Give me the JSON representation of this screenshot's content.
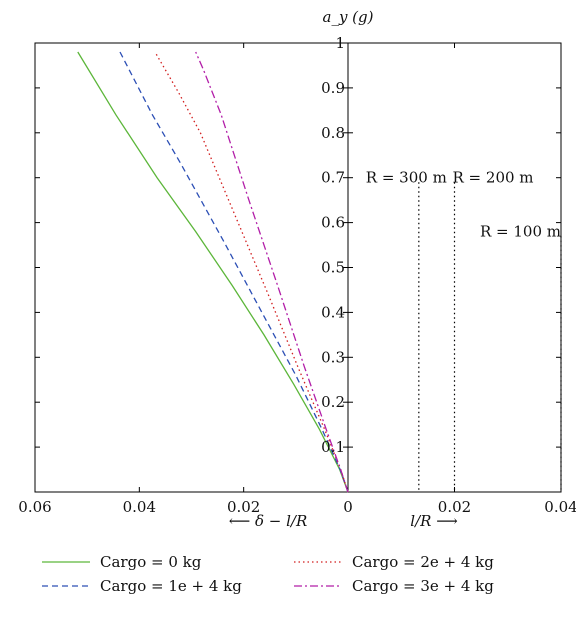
{
  "chart_data": {
    "type": "line",
    "ylabel": "a_y (g)",
    "xlabel_left": "⟵ δ − l/R",
    "xlabel_right": "l/R ⟶",
    "left_panel": {
      "xlim": [
        0.06,
        0
      ],
      "xticks": [
        0.06,
        0.04,
        0.02,
        0
      ],
      "xtick_labels": [
        "0.06",
        "0.04",
        "0.02",
        "0"
      ]
    },
    "right_panel": {
      "xlim": [
        0,
        0.04
      ],
      "xticks": [
        0.02,
        0.04
      ],
      "xtick_labels": [
        "0.02",
        "0.04"
      ]
    },
    "ylim": [
      0,
      1
    ],
    "yticks": [
      0.1,
      0.2,
      0.3,
      0.4,
      0.5,
      0.6,
      0.7,
      0.8,
      0.9,
      1
    ],
    "ytick_labels": [
      "0.1",
      "0.2",
      "0.3",
      "0.4",
      "0.5",
      "0.6",
      "0.7",
      "0.8",
      "0.9",
      "1"
    ],
    "series": [
      {
        "name": "Cargo = 0 kg",
        "color": "#5cb63a",
        "dash": "solid",
        "x": [
          0,
          0.0016,
          0.0055,
          0.0104,
          0.0161,
          0.0222,
          0.0292,
          0.0366,
          0.0445,
          0.0518
        ],
        "y": [
          0,
          0.05,
          0.14,
          0.24,
          0.35,
          0.46,
          0.58,
          0.7,
          0.84,
          0.98
        ]
      },
      {
        "name": "Cargo = 1e + 4 kg",
        "color": "#2c4fb5",
        "dash": "6,4",
        "x": [
          0,
          0.0015,
          0.005,
          0.01,
          0.0165,
          0.0239,
          0.032,
          0.0375,
          0.0437
        ],
        "y": [
          0,
          0.05,
          0.14,
          0.26,
          0.4,
          0.56,
          0.73,
          0.84,
          0.98
        ]
      },
      {
        "name": "Cargo = 2e + 4 kg",
        "color": "#d21e1e",
        "dash": "1.5,3",
        "x": [
          0,
          0.0014,
          0.0045,
          0.0093,
          0.0153,
          0.0218,
          0.0283,
          0.0325,
          0.037
        ],
        "y": [
          0,
          0.05,
          0.14,
          0.27,
          0.44,
          0.62,
          0.8,
          0.89,
          0.98
        ]
      },
      {
        "name": "Cargo = 3e + 4 kg",
        "color": "#b21ea8",
        "dash": "8,3,2,3",
        "x": [
          0,
          0.0014,
          0.0042,
          0.0084,
          0.0135,
          0.019,
          0.0243,
          0.0277,
          0.0292
        ],
        "y": [
          0,
          0.05,
          0.14,
          0.28,
          0.46,
          0.65,
          0.84,
          0.94,
          0.98
        ]
      }
    ],
    "reference_lines": [
      {
        "label": "R = 300 m",
        "x": 0.0133
      },
      {
        "label": "R = 200 m",
        "x": 0.02
      },
      {
        "label": "R = 100 m",
        "x": 0.04
      }
    ],
    "legend_position": "bottom"
  }
}
